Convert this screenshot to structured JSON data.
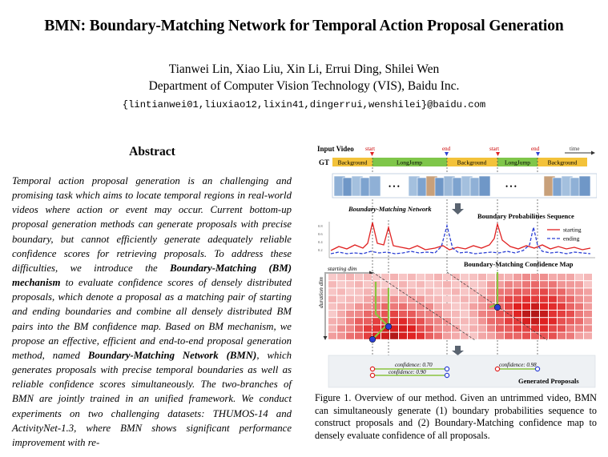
{
  "paper": {
    "title": "BMN: Boundary-Matching Network for Temporal Action Proposal Generation",
    "authors": "Tianwei Lin, Xiao Liu, Xin Li, Errui Ding, Shilei Wen",
    "affiliation": "Department of Computer Vision Technology (VIS), Baidu Inc.",
    "email": "{lintianwei01,liuxiao12,lixin41,dingerrui,wenshilei}@baidu.com"
  },
  "abstract": {
    "heading": "Abstract",
    "p1": "Temporal action proposal generation is an challenging and promising task which aims to locate temporal regions in real-world videos where action or event may occur. Current bottom-up proposal generation methods can generate proposals with precise boundary, but cannot efficiently generate adequately reliable confidence scores for retrieving proposals. To address these difficulties, we introduce the ",
    "b1": "Boundary-Matching (BM) mechanism",
    "p2": " to evaluate confidence scores of densely distributed proposals, which denote a proposal as a matching pair of starting and ending boundaries and combine all densely distributed BM pairs into the BM confidence map. Based on BM mechanism, we propose an effective, efficient and end-to-end proposal generation method, named ",
    "b2": "Boundary-Matching Network (BMN)",
    "p3": ", which generates proposals with precise temporal boundaries as well as reliable confidence scores simultaneously. The two-branches of BMN are jointly trained in an unified framework. We conduct experiments on two challenging datasets: THUMOS-14 and ActivityNet-1.3, where BMN shows significant performance improvement with re-"
  },
  "figure": {
    "input_video": "Input Video",
    "gt": "GT",
    "time": "time",
    "start": "start",
    "end": "end",
    "segments": [
      "Background",
      "LongJump",
      "Background",
      "LongJump",
      "Background"
    ],
    "ellipsis": "• • •",
    "bmn_label": "Boundary-Matching Network",
    "bps_label": "Boundary Probabilities Sequence",
    "legend_starting": "starting",
    "legend_ending": "ending",
    "yticks": [
      "0.8",
      "0.6",
      "0.4",
      "0.2"
    ],
    "bm_map_label": "Boundary-Matching Confidence Map",
    "starting_dim": "starting dim",
    "duration_dim": "duration dim",
    "conf1": "confidence: 0.70",
    "conf2": "confidence: 0.90",
    "conf3": "confidence: 0.98",
    "generated": "Generated Proposals",
    "colors": {
      "segment_bg": "#f3c23a",
      "segment_action": "#7fc64a",
      "starting": "#e02020",
      "ending": "#2b3fd4",
      "arrow_green": "#8ac43f"
    }
  },
  "caption": "Figure 1. Overview of our method. Given an untrimmed video, BMN can simultaneously generate (1) boundary probabilities sequence to construct proposals and (2) Boundary-Matching confidence map to densely evaluate confidence of all proposals."
}
